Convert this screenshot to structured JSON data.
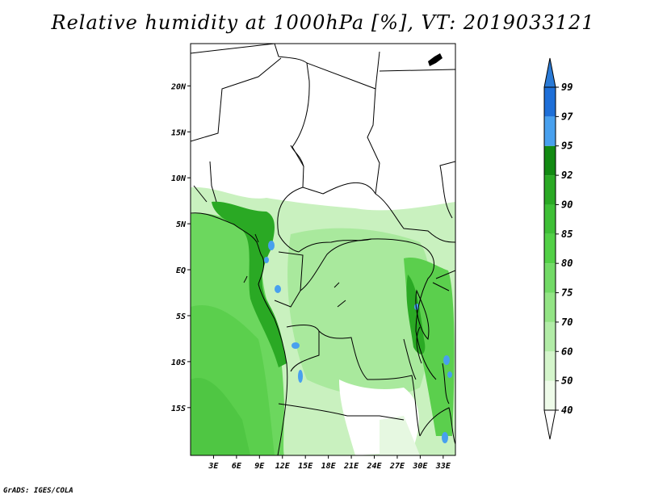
{
  "title": "Relative humidity at 1000hPa [%], VT: 2019033121",
  "credit": "GrADS: IGES/COLA",
  "map": {
    "lat_ticks": [
      {
        "value": 20,
        "label": "20N"
      },
      {
        "value": 15,
        "label": "15N"
      },
      {
        "value": 10,
        "label": "10N"
      },
      {
        "value": 5,
        "label": "5N"
      },
      {
        "value": 0,
        "label": "EQ"
      },
      {
        "value": -5,
        "label": "5S"
      },
      {
        "value": -10,
        "label": "10S"
      },
      {
        "value": -15,
        "label": "15S"
      }
    ],
    "lon_ticks": [
      {
        "value": 3,
        "label": "3E"
      },
      {
        "value": 6,
        "label": "6E"
      },
      {
        "value": 9,
        "label": "9E"
      },
      {
        "value": 12,
        "label": "12E"
      },
      {
        "value": 15,
        "label": "15E"
      },
      {
        "value": 18,
        "label": "18E"
      },
      {
        "value": 21,
        "label": "21E"
      },
      {
        "value": 24,
        "label": "24E"
      },
      {
        "value": 27,
        "label": "27E"
      },
      {
        "value": 30,
        "label": "30E"
      },
      {
        "value": 33,
        "label": "33E"
      }
    ]
  },
  "colorbar": {
    "levels": [
      "40",
      "50",
      "60",
      "70",
      "75",
      "80",
      "85",
      "90",
      "92",
      "95",
      "97",
      "99"
    ],
    "colors": [
      "#eefbe9",
      "#d4f5cb",
      "#b2eca7",
      "#93e485",
      "#72da66",
      "#52d046",
      "#3ebf36",
      "#2aa924",
      "#128a12",
      "#48a0ee",
      "#1e6fd8",
      "#1559c2",
      "#2a7ad6"
    ]
  }
}
